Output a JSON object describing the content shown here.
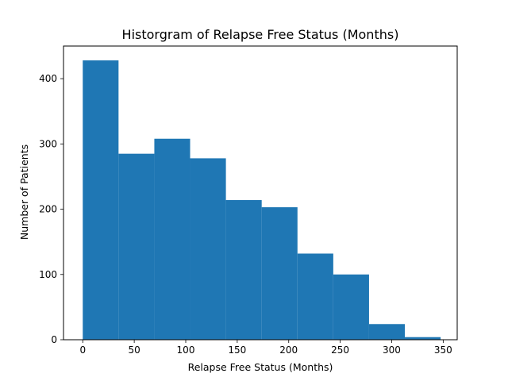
{
  "chart_data": {
    "type": "bar",
    "title": "Historgram of Relapse Free Status (Months)",
    "xlabel": "Relapse Free Status (Months)",
    "ylabel": "Number of Patients",
    "xlim": [
      -18.7,
      363.6
    ],
    "ylim": [
      0,
      450
    ],
    "xticks": [
      0,
      50,
      100,
      150,
      200,
      250,
      300,
      350
    ],
    "yticks": [
      0,
      100,
      200,
      300,
      400
    ],
    "bins": [
      {
        "x0": 0.0,
        "x1": 34.75,
        "value": 428
      },
      {
        "x0": 34.75,
        "x1": 69.5,
        "value": 285
      },
      {
        "x0": 69.5,
        "x1": 104.25,
        "value": 308
      },
      {
        "x0": 104.25,
        "x1": 139.0,
        "value": 278
      },
      {
        "x0": 139.0,
        "x1": 173.75,
        "value": 214
      },
      {
        "x0": 173.75,
        "x1": 208.5,
        "value": 203
      },
      {
        "x0": 208.5,
        "x1": 243.25,
        "value": 132
      },
      {
        "x0": 243.25,
        "x1": 278.0,
        "value": 100
      },
      {
        "x0": 278.0,
        "x1": 312.75,
        "value": 24
      },
      {
        "x0": 312.75,
        "x1": 347.5,
        "value": 4
      }
    ],
    "bar_color": "#1f77b4",
    "grid": false,
    "legend": "none"
  }
}
